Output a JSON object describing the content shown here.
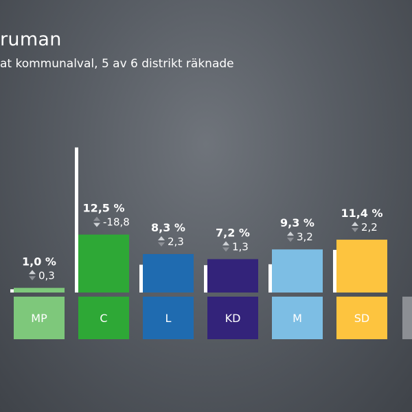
{
  "header": {
    "title": "ruman",
    "subtitle": "at kommunalval, 5 av 6 distrikt räknade"
  },
  "chart_data": {
    "type": "bar",
    "title": "ruman",
    "subtitle": "at kommunalval, 5 av 6 distrikt räknade",
    "categories": [
      "MP",
      "C",
      "L",
      "KD",
      "M",
      "SD"
    ],
    "series": [
      {
        "values": [
          1.0,
          12.5,
          8.3,
          7.2,
          9.3,
          11.4
        ]
      }
    ],
    "previous": [
      0.7,
      31.3,
      6.0,
      5.9,
      6.1,
      9.2
    ],
    "value_labels": [
      "1,0 %",
      "12,5 %",
      "8,3 %",
      "7,2 %",
      "9,3 %",
      "11,4 %"
    ],
    "change_labels": [
      "0,3",
      "-18,8",
      "2,3",
      "1,3",
      "3,2",
      "2,2"
    ],
    "change_direction": [
      "up",
      "down",
      "up",
      "up",
      "up",
      "up"
    ],
    "colors": [
      "#7ec87b",
      "#2ea836",
      "#1f6bb0",
      "#33237a",
      "#7dbee4",
      "#fdc43f"
    ],
    "previous_bar_color": "#ffffff",
    "ylim": [
      0,
      32
    ],
    "grid": false,
    "legend": "none"
  }
}
